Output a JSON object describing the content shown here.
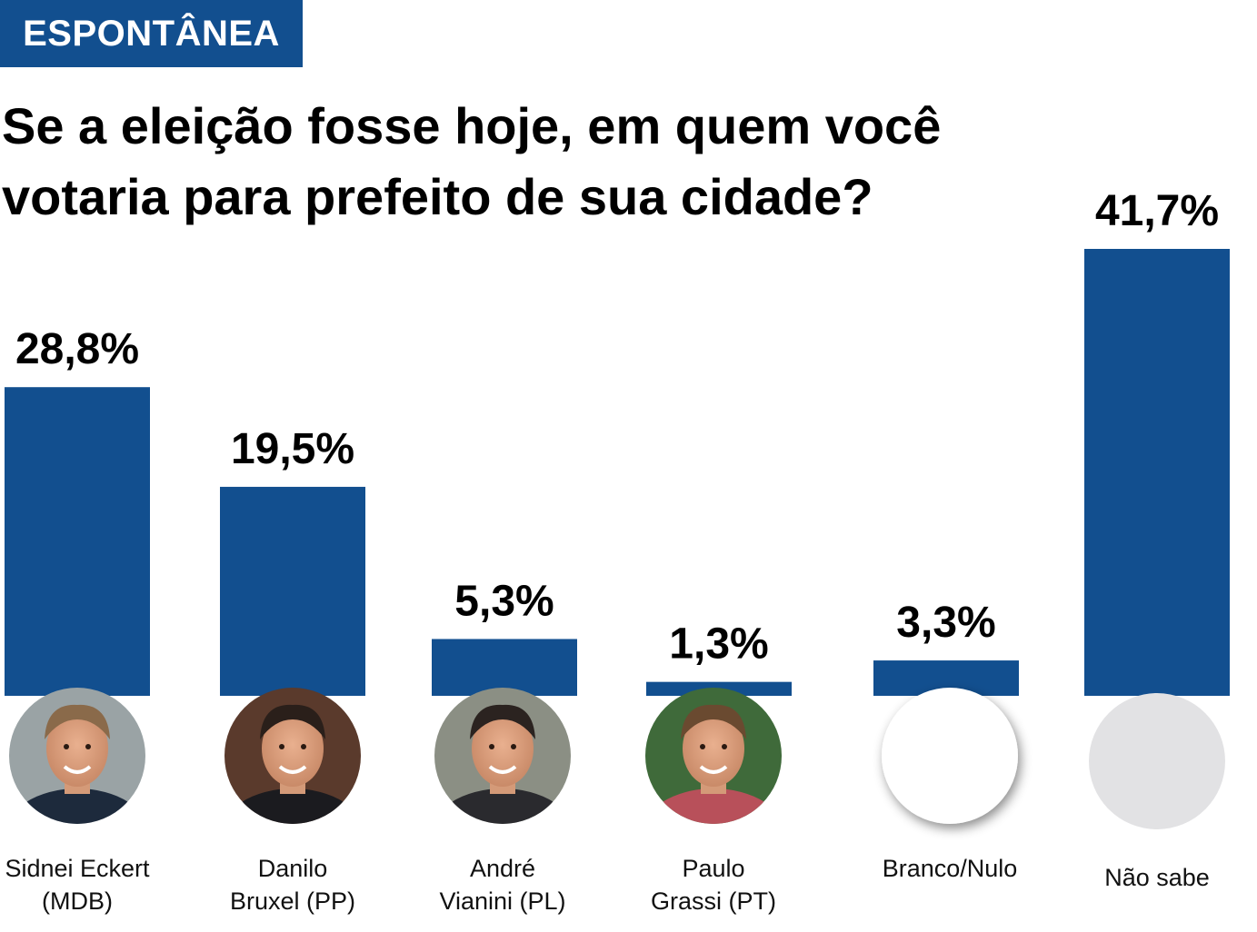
{
  "tag": "ESPONTÂNEA",
  "question": "Se a eleição fosse hoje, em quem você votaria para prefeito de sua cidade?",
  "colors": {
    "bar": "#124f8f",
    "tag_bg": "#124f8f",
    "placeholder_grey": "#e2e2e4"
  },
  "chart_data": {
    "type": "bar",
    "categories": [
      "Sidnei Eckert\n(MDB)",
      "Danilo\nBruxel (PP)",
      "André\nVianini (PL)",
      "Paulo\nGrassi (PT)",
      "Branco/Nulo",
      "Não sabe"
    ],
    "values": [
      28.8,
      19.5,
      5.3,
      1.3,
      3.3,
      41.7
    ],
    "data_labels": [
      "28,8%",
      "19,5%",
      "5,3%",
      "1,3%",
      "3,3%",
      "41,7%"
    ],
    "title": "Se a eleição fosse hoje, em quem você votaria para prefeito de sua cidade?",
    "xlabel": "",
    "ylabel": "",
    "unit": "%",
    "grid": false,
    "legend": "none"
  },
  "photos": [
    {
      "name": "Sidnei Eckert",
      "icon": "candidate-photo"
    },
    {
      "name": "Danilo Bruxel",
      "icon": "candidate-photo"
    },
    {
      "name": "André Vianini",
      "icon": "candidate-photo"
    },
    {
      "name": "Paulo Grassi",
      "icon": "candidate-photo"
    },
    {
      "name": "Branco/Nulo",
      "icon": "white-circle"
    },
    {
      "name": "Não sabe",
      "icon": "grey-circle"
    }
  ]
}
